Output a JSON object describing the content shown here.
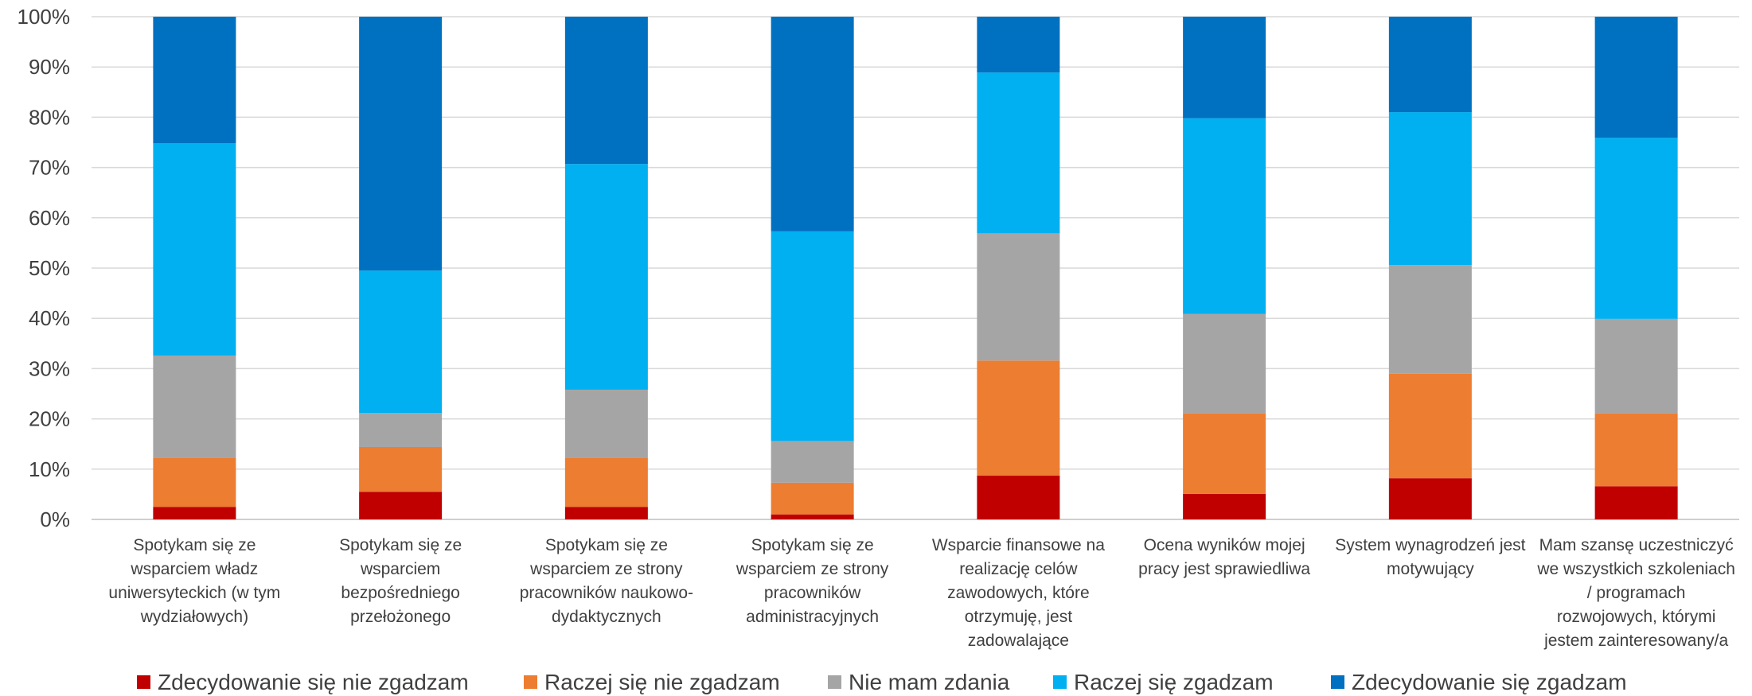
{
  "chart_data": {
    "type": "bar",
    "stacked": true,
    "percent": true,
    "categories": [
      [
        "Spotykam się ze",
        "wsparciem władz",
        "uniwersyteckich (w tym",
        "wydziałowych)"
      ],
      [
        "Spotykam się ze",
        "wsparciem",
        "bezpośredniego",
        "przełożonego"
      ],
      [
        "Spotykam się ze",
        "wsparciem ze strony",
        "pracowników naukowo-",
        "dydaktycznych"
      ],
      [
        "Spotykam się ze",
        "wsparciem ze strony",
        "pracowników",
        "administracyjnych"
      ],
      [
        "Wsparcie finansowe na",
        "realizację celów",
        "zawodowych, które",
        "otrzymuję, jest",
        "zadowalające"
      ],
      [
        "Ocena wyników mojej",
        "pracy jest sprawiedliwa"
      ],
      [
        "System wynagrodzeń jest",
        "motywujący"
      ],
      [
        "Mam szansę uczestniczyć",
        "we wszystkich szkoleniach",
        "/ programach",
        "rozwojowych, którymi",
        "jestem zainteresowany/a"
      ]
    ],
    "series": [
      {
        "name": "Zdecydowanie się nie zgadzam",
        "color": "#C00000",
        "values": [
          2.5,
          5.5,
          2.5,
          1.0,
          8.7,
          5.1,
          8.2,
          6.6
        ]
      },
      {
        "name": "Raczej się nie zgadzam",
        "color": "#ED7D31",
        "values": [
          9.8,
          8.9,
          9.8,
          6.3,
          22.9,
          16.0,
          20.8,
          14.5
        ]
      },
      {
        "name": "Nie mam zdania",
        "color": "#A5A5A5",
        "values": [
          20.3,
          6.8,
          13.5,
          8.3,
          25.3,
          19.8,
          21.6,
          18.8
        ]
      },
      {
        "name": "Raczej się zgadzam",
        "color": "#00B0F0",
        "values": [
          42.2,
          28.3,
          44.9,
          41.7,
          32.0,
          38.9,
          30.4,
          36.0
        ]
      },
      {
        "name": "Zdecydowanie się zgadzam",
        "color": "#0070C0",
        "values": [
          25.2,
          50.5,
          29.3,
          42.7,
          11.1,
          20.2,
          19.0,
          24.1
        ]
      }
    ],
    "y_ticks": [
      "0%",
      "10%",
      "20%",
      "30%",
      "40%",
      "50%",
      "60%",
      "70%",
      "80%",
      "90%",
      "100%"
    ],
    "ylim": [
      0,
      100
    ],
    "grid": true,
    "legend_position": "bottom"
  }
}
